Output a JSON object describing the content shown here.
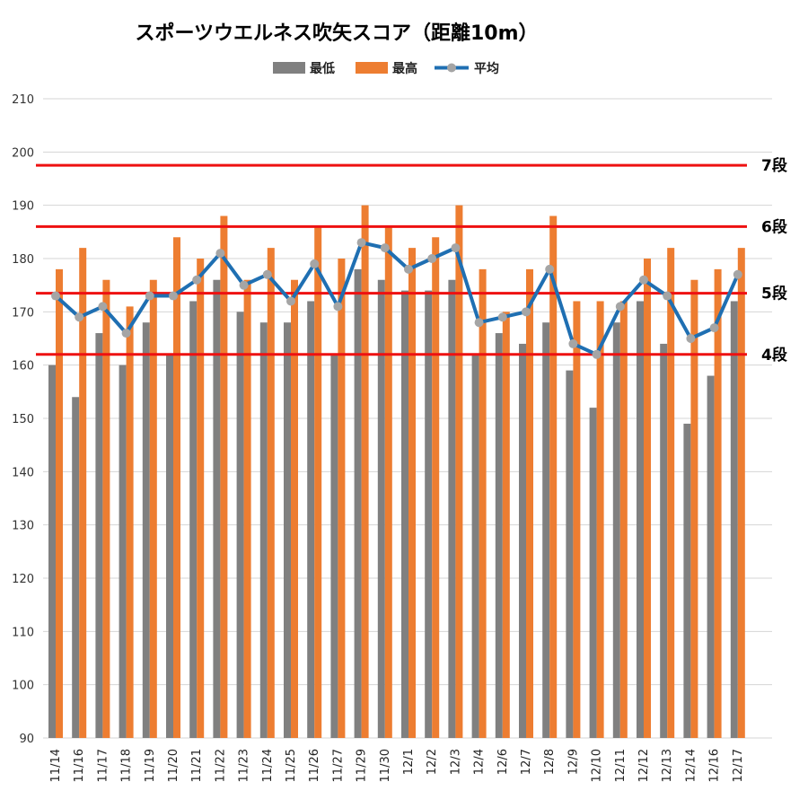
{
  "chart_data": {
    "type": "bar",
    "title": "スポーツウエルネス吹矢スコア（距離10m）",
    "ylim": [
      90,
      210
    ],
    "yticks": [
      90,
      100,
      110,
      120,
      130,
      140,
      150,
      160,
      170,
      180,
      190,
      200,
      210
    ],
    "grid": true,
    "legend_position": "top-center",
    "categories": [
      "11/14",
      "11/16",
      "11/17",
      "11/18",
      "11/19",
      "11/20",
      "11/21",
      "11/22",
      "11/23",
      "11/24",
      "11/25",
      "11/26",
      "11/27",
      "11/29",
      "11/30",
      "12/1",
      "12/2",
      "12/3",
      "12/4",
      "12/6",
      "12/7",
      "12/8",
      "12/9",
      "12/10",
      "12/11",
      "12/12",
      "12/13",
      "12/14",
      "12/16",
      "12/17"
    ],
    "series": [
      {
        "name": "最低",
        "type": "bar",
        "color": "#808080",
        "values": [
          160,
          154,
          166,
          160,
          168,
          162,
          172,
          176,
          170,
          168,
          168,
          172,
          162,
          178,
          176,
          174,
          174,
          176,
          162,
          166,
          164,
          168,
          159,
          152,
          168,
          172,
          164,
          149,
          158,
          172
        ]
      },
      {
        "name": "最高",
        "type": "bar",
        "color": "#ed7d31",
        "values": [
          178,
          182,
          176,
          171,
          176,
          184,
          180,
          188,
          176,
          182,
          176,
          186,
          180,
          190,
          186,
          182,
          184,
          190,
          178,
          170,
          178,
          188,
          172,
          172,
          172,
          180,
          182,
          176,
          178,
          182
        ]
      },
      {
        "name": "平均",
        "type": "line",
        "color": "#1f6fb2",
        "marker_color": "#a5a5a5",
        "values": [
          173,
          169,
          171,
          166,
          173,
          173,
          176,
          181,
          175,
          177,
          172,
          179,
          171,
          183,
          182,
          178,
          180,
          182,
          168,
          169,
          170,
          178,
          164,
          162,
          171,
          176,
          173,
          165,
          167,
          177
        ]
      }
    ],
    "reference_lines": [
      {
        "label": "7段",
        "value": 197.5,
        "color": "#ee1111"
      },
      {
        "label": "6段",
        "value": 186,
        "color": "#ee1111"
      },
      {
        "label": "5段",
        "value": 173.5,
        "color": "#ee1111"
      },
      {
        "label": "4段",
        "value": 162,
        "color": "#ee1111"
      }
    ]
  }
}
